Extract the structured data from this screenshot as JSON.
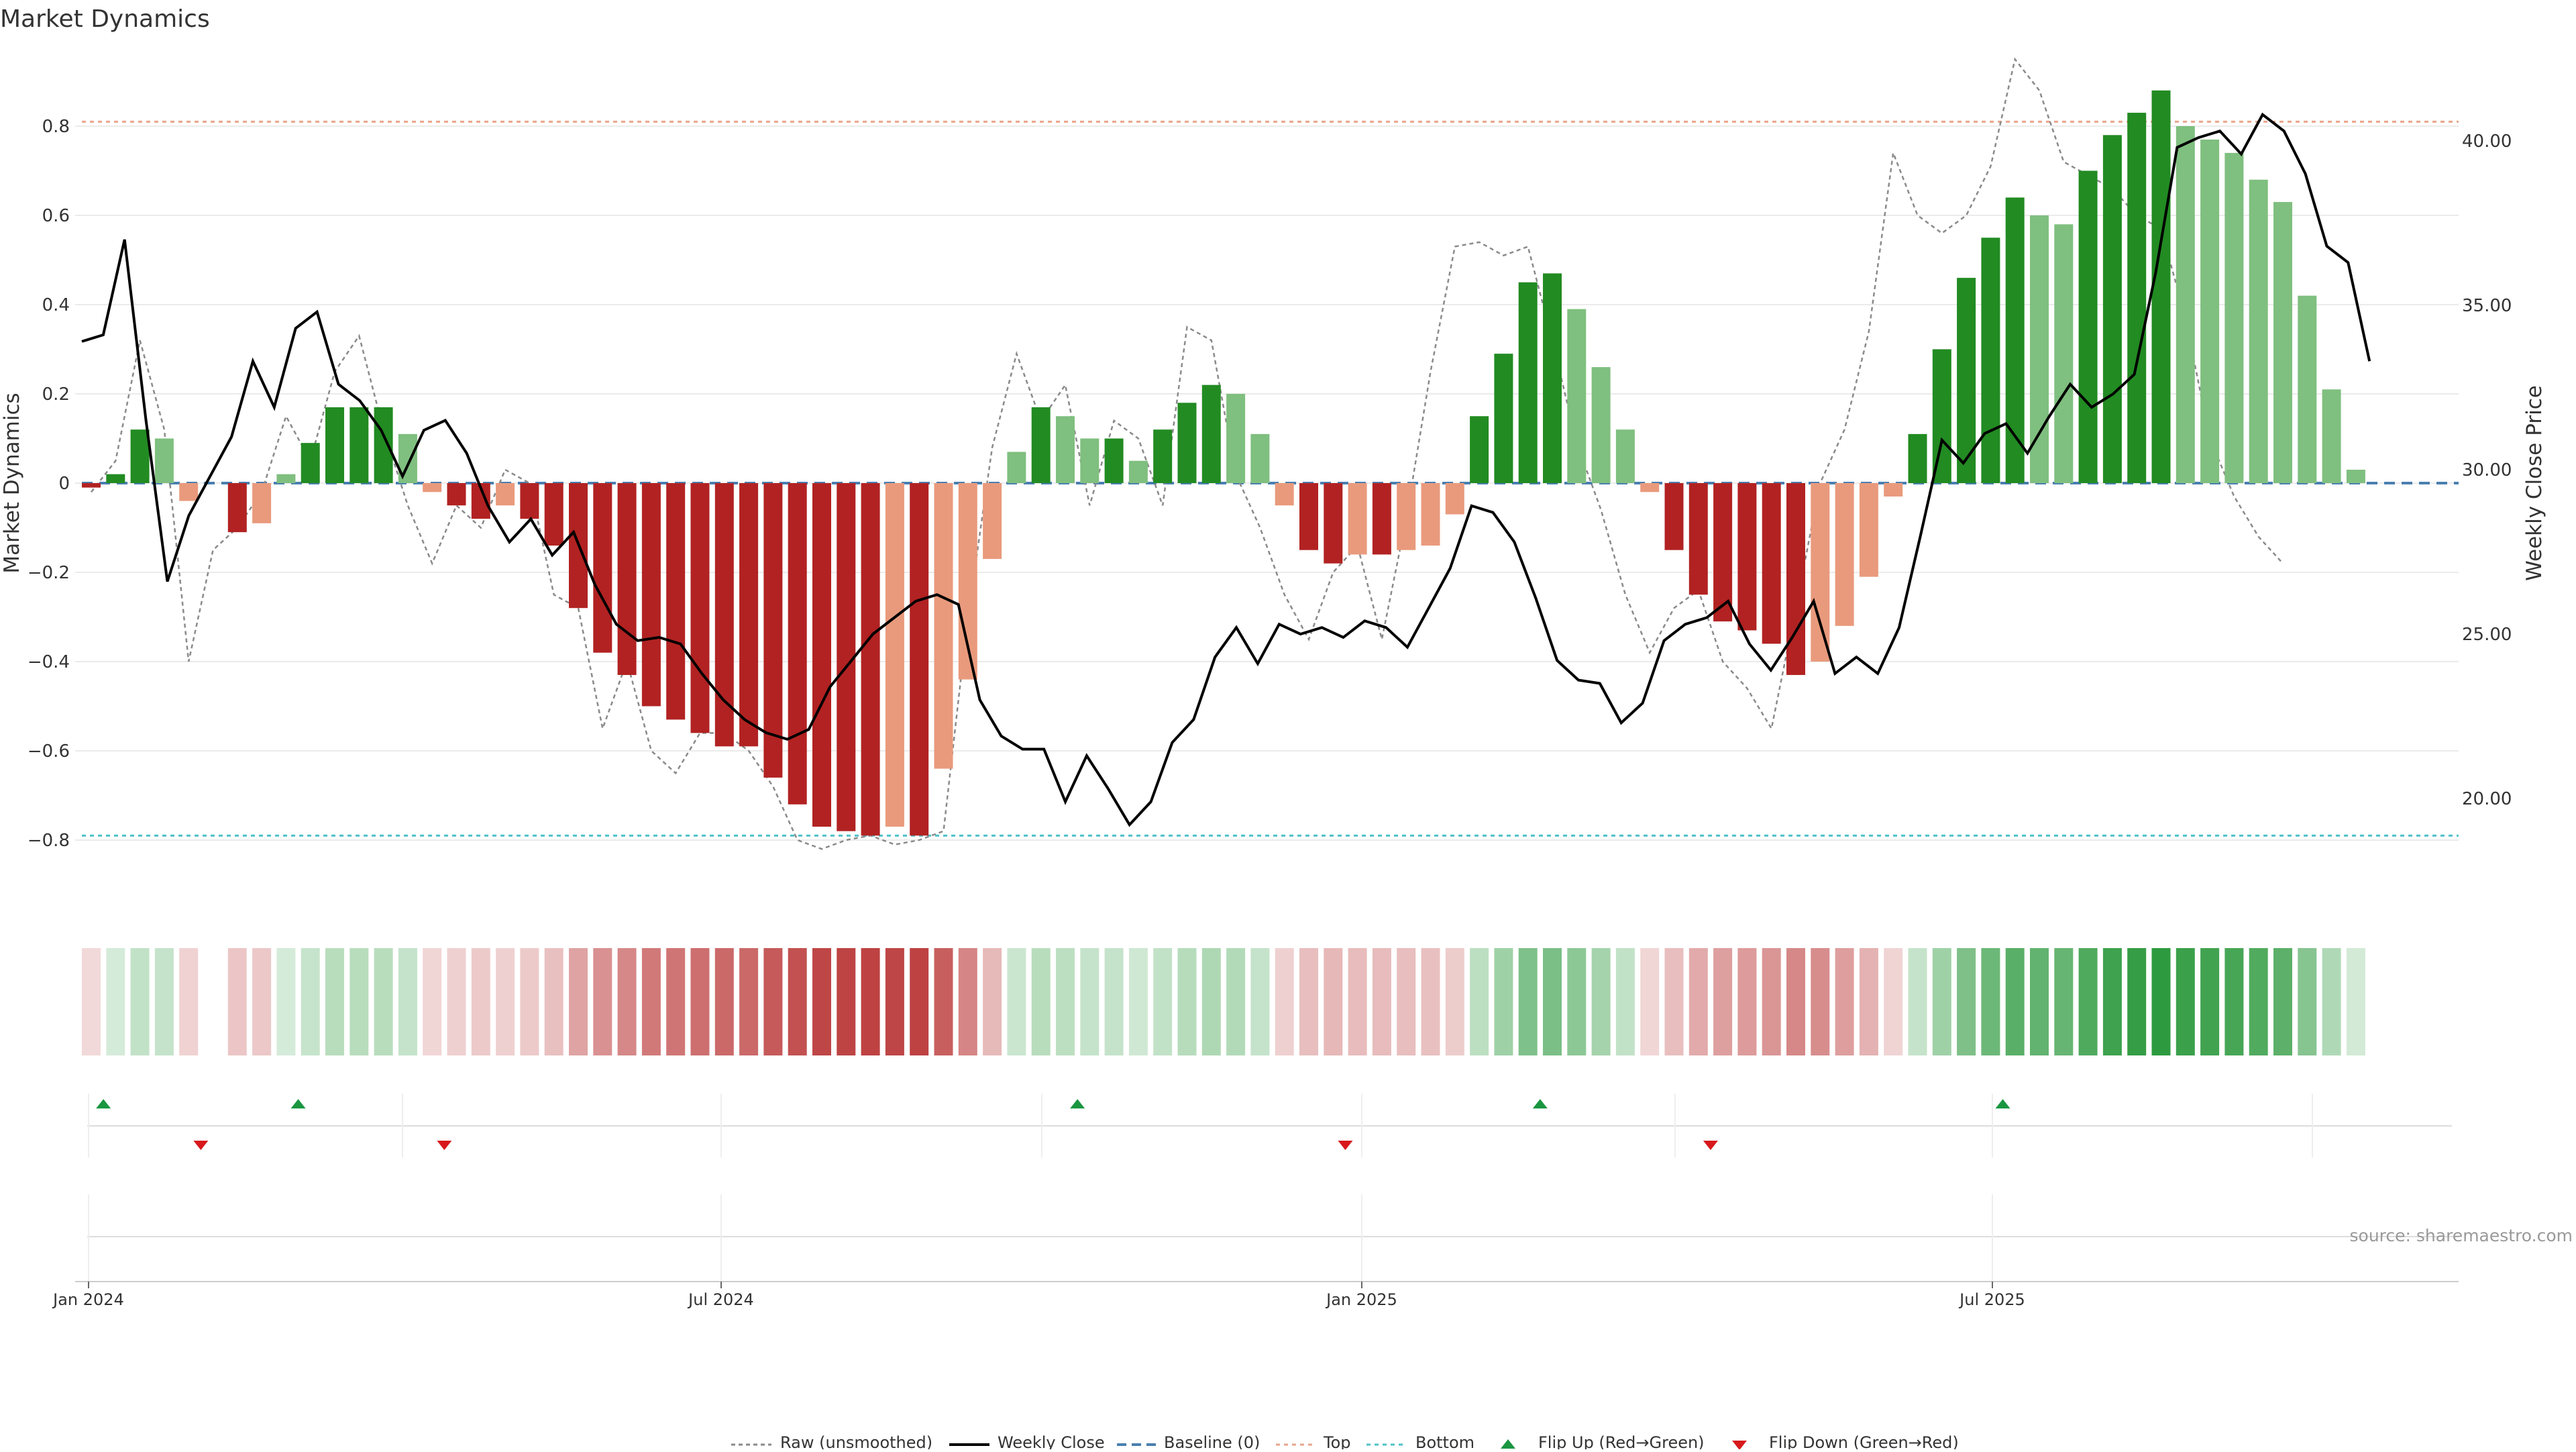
{
  "title": "Market Dynamics",
  "source": "source: sharemaestro.com",
  "colors": {
    "strong_green": "#228B22",
    "light_green": "#7FBF7F",
    "strong_red": "#B22222",
    "light_red": "#E99A7C",
    "close_line": "#000000",
    "raw_line": "#8a8a8a",
    "baseline": "#4a7fb0",
    "top_line": "#E9A58C",
    "bottom_line": "#4FC1C8",
    "flip_up": "#1a9641",
    "flip_down": "#d7191c"
  },
  "legend": {
    "raw": "Raw (unsmoothed)",
    "close": "Weekly Close",
    "baseline": "Baseline (0)",
    "top": "Top",
    "bottom": "Bottom",
    "flip_up": "Flip Up (Red→Green)",
    "flip_down": "Flip Down (Green→Red)"
  },
  "chart_data": {
    "type": "bar",
    "title": "Market Dynamics",
    "ylabel_left": "Market Dynamics",
    "ylabel_right": "Weekly Close Price",
    "left_ylim": [
      -0.96,
      0.96
    ],
    "right_ylim": [
      17.0,
      42.5
    ],
    "left_ticks": [
      "0.8",
      "0.6",
      "0.4",
      "0.2",
      "0",
      "−0.2",
      "−0.4",
      "−0.6",
      "−0.8"
    ],
    "left_tick_values": [
      0.8,
      0.6,
      0.4,
      0.2,
      0,
      -0.2,
      -0.4,
      -0.6,
      -0.8
    ],
    "right_ticks": [
      "40.00",
      "35.00",
      "30.00",
      "25.00",
      "20.00"
    ],
    "right_tick_values": [
      40,
      35,
      30,
      25,
      20
    ],
    "x_ticks": [
      "Jan 2024",
      "Jul 2024",
      "Jan 2025",
      "Jul 2025"
    ],
    "x_tick_weeks": [
      0,
      26,
      52.3,
      78
    ],
    "top_level": 0.81,
    "bottom_level": -0.79,
    "grid": true,
    "legend_position": "bottom-center",
    "bars": [
      -0.01,
      0.02,
      0.12,
      0.1,
      -0.04,
      0,
      -0.11,
      -0.09,
      0.02,
      0.09,
      0.17,
      0.17,
      0.17,
      0.11,
      -0.02,
      -0.05,
      -0.08,
      -0.05,
      -0.08,
      -0.14,
      -0.28,
      -0.38,
      -0.43,
      -0.5,
      -0.53,
      -0.56,
      -0.59,
      -0.59,
      -0.66,
      -0.72,
      -0.77,
      -0.78,
      -0.79,
      -0.77,
      -0.79,
      -0.64,
      -0.44,
      -0.17,
      0.07,
      0.17,
      0.15,
      0.1,
      0.1,
      0.05,
      0.12,
      0.18,
      0.22,
      0.2,
      0.11,
      -0.05,
      -0.15,
      -0.18,
      -0.16,
      -0.16,
      -0.15,
      -0.14,
      -0.07,
      0.15,
      0.29,
      0.45,
      0.47,
      0.39,
      0.26,
      0.12,
      -0.02,
      -0.15,
      -0.25,
      -0.31,
      -0.33,
      -0.36,
      -0.43,
      -0.4,
      -0.32,
      -0.21,
      -0.03,
      0.11,
      0.3,
      0.46,
      0.55,
      0.64,
      0.6,
      0.58,
      0.7,
      0.78,
      0.83,
      0.88,
      0.8,
      0.77,
      0.74,
      0.68,
      0.63,
      0.42,
      0.21,
      0.03
    ],
    "weekly_close": [
      33.9,
      34.1,
      37.0,
      31.5,
      26.6,
      28.6,
      29.8,
      31.0,
      33.3,
      31.9,
      34.3,
      34.8,
      32.6,
      32.1,
      31.2,
      29.8,
      31.2,
      31.5,
      30.5,
      28.9,
      27.8,
      28.5,
      27.4,
      28.1,
      26.5,
      25.3,
      24.8,
      24.9,
      24.7,
      23.8,
      23.0,
      22.4,
      22.0,
      21.8,
      22.1,
      23.4,
      24.2,
      25.0,
      25.5,
      26.0,
      26.2,
      25.9,
      23.0,
      21.9,
      21.5,
      21.5,
      19.9,
      21.3,
      20.3,
      19.2,
      19.9,
      21.7,
      22.4,
      24.3,
      25.2,
      24.1,
      25.3,
      25.0,
      25.2,
      24.9,
      25.4,
      25.2,
      24.6,
      25.8,
      27.0,
      28.9,
      28.7,
      27.8,
      26.1,
      24.2,
      23.6,
      23.5,
      22.3,
      22.9,
      24.8,
      25.3,
      25.5,
      26.0,
      24.7,
      23.9,
      24.9,
      26.0,
      23.8,
      24.3,
      23.8,
      25.2,
      28.0,
      30.9,
      30.2,
      31.1,
      31.4,
      30.5,
      31.6,
      32.6,
      31.9,
      32.3,
      32.9,
      36.0,
      39.8,
      40.1,
      40.3,
      39.6,
      40.8,
      40.3,
      39.0,
      36.8,
      36.3,
      33.3
    ],
    "weekly_close_note": "values in price units",
    "raw": [
      -0.02,
      0.05,
      0.32,
      0.12,
      -0.4,
      -0.15,
      -0.1,
      -0.02,
      0.15,
      0.05,
      0.25,
      0.33,
      0.12,
      -0.05,
      -0.18,
      -0.05,
      -0.1,
      0.03,
      0.0,
      -0.25,
      -0.28,
      -0.55,
      -0.4,
      -0.6,
      -0.65,
      -0.56,
      -0.56,
      -0.6,
      -0.68,
      -0.8,
      -0.82,
      -0.8,
      -0.79,
      -0.81,
      -0.8,
      -0.78,
      -0.3,
      0.08,
      0.29,
      0.14,
      0.22,
      -0.05,
      0.14,
      0.1,
      -0.05,
      0.35,
      0.32,
      0.02,
      -0.1,
      -0.25,
      -0.35,
      -0.2,
      -0.14,
      -0.35,
      -0.08,
      0.25,
      0.53,
      0.54,
      0.51,
      0.53,
      0.32,
      0.09,
      -0.06,
      -0.25,
      -0.38,
      -0.28,
      -0.24,
      -0.4,
      -0.46,
      -0.55,
      -0.28,
      0.0,
      0.12,
      0.34,
      0.74,
      0.6,
      0.56,
      0.6,
      0.71,
      0.95,
      0.88,
      0.72,
      0.69,
      0.66,
      0.6,
      0.57,
      0.37,
      0.1,
      -0.03,
      -0.12,
      -0.18
    ],
    "flip_up_weeks": [
      1,
      9,
      41,
      60,
      79
    ],
    "flip_down_weeks": [
      5,
      15,
      52,
      67
    ]
  }
}
